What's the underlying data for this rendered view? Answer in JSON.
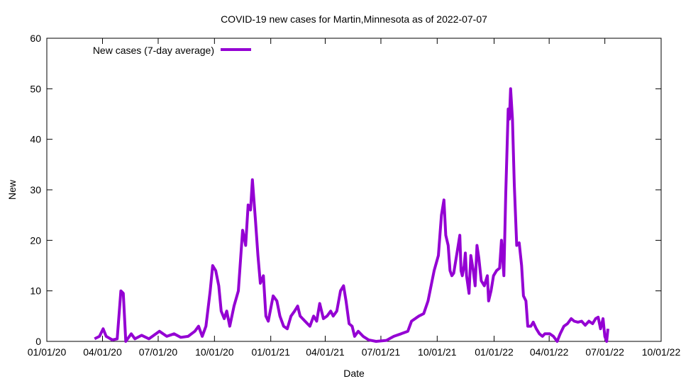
{
  "chart_data": {
    "type": "line",
    "title": "COVID-19 new cases for Martin,Minnesota as of 2022-07-07",
    "xlabel": "Date",
    "ylabel": "New",
    "x_unit": "days since 2020-01-01",
    "xlim": [
      0,
      1004
    ],
    "ylim": [
      0,
      60
    ],
    "yticks": [
      0,
      10,
      20,
      30,
      40,
      50,
      60
    ],
    "xticks": [
      {
        "day": 0,
        "label": "01/01/20"
      },
      {
        "day": 91,
        "label": "04/01/20"
      },
      {
        "day": 182,
        "label": "07/01/20"
      },
      {
        "day": 274,
        "label": "10/01/20"
      },
      {
        "day": 366,
        "label": "01/01/21"
      },
      {
        "day": 455,
        "label": "04/01/21"
      },
      {
        "day": 546,
        "label": "07/01/21"
      },
      {
        "day": 638,
        "label": "10/01/21"
      },
      {
        "day": 731,
        "label": "01/01/22"
      },
      {
        "day": 821,
        "label": "04/01/22"
      },
      {
        "day": 912,
        "label": "07/01/22"
      },
      {
        "day": 1004,
        "label": "10/01/22"
      }
    ],
    "grid": false,
    "legend_position": "top-left",
    "series": [
      {
        "name": "New cases (7-day average)",
        "color": "#9400d3",
        "x": [
          78,
          86,
          92,
          97,
          107,
          115,
          121,
          125,
          129,
          138,
          144,
          155,
          167,
          184,
          196,
          208,
          219,
          231,
          242,
          248,
          254,
          260,
          267,
          271,
          276,
          281,
          285,
          290,
          294,
          299,
          306,
          313,
          320,
          325,
          329,
          333,
          336,
          341,
          345,
          349,
          354,
          358,
          362,
          370,
          376,
          381,
          387,
          393,
          399,
          405,
          410,
          414,
          422,
          430,
          436,
          441,
          446,
          452,
          458,
          464,
          468,
          474,
          480,
          485,
          489,
          494,
          499,
          503,
          509,
          517,
          526,
          538,
          555,
          567,
          579,
          590,
          596,
          608,
          616,
          623,
          628,
          633,
          640,
          645,
          649,
          652,
          656,
          659,
          662,
          665,
          671,
          675,
          677,
          679,
          682,
          684,
          686,
          690,
          693,
          697,
          700,
          703,
          706,
          710,
          715,
          720,
          722,
          726,
          730,
          735,
          740,
          743,
          747,
          750,
          754,
          756,
          758,
          761,
          764,
          768,
          772,
          776,
          779,
          783,
          786,
          791,
          795,
          800,
          805,
          810,
          814,
          822,
          828,
          834,
          839,
          845,
          851,
          857,
          862,
          868,
          874,
          880,
          886,
          892,
          897,
          901,
          905,
          909,
          912,
          915,
          917
        ],
        "y": [
          0.5,
          1,
          2.5,
          1,
          0.3,
          0.5,
          10,
          9.5,
          0,
          1.5,
          0.5,
          1.2,
          0.5,
          2,
          1,
          1.5,
          0.8,
          1,
          2,
          3,
          1,
          3,
          10,
          15,
          14,
          11,
          6,
          4.5,
          6,
          3,
          7,
          10,
          22,
          19,
          27,
          26,
          32,
          24,
          17,
          11.5,
          13,
          5,
          4,
          9,
          8,
          5,
          3,
          2.5,
          5,
          6,
          7,
          5,
          4,
          3,
          5,
          4,
          7.5,
          4.5,
          5,
          6,
          5,
          6,
          10,
          11,
          8,
          3.5,
          3,
          1,
          2,
          1,
          0.3,
          0,
          0.2,
          1,
          1.5,
          2,
          4,
          5,
          5.5,
          8,
          11,
          14,
          17,
          25,
          28,
          21,
          19,
          14,
          13,
          13.5,
          18,
          21,
          14,
          13,
          15,
          17.5,
          13,
          9.5,
          17,
          14,
          11,
          19,
          16.5,
          12,
          11,
          13,
          8,
          10,
          13,
          14,
          14.5,
          20,
          13,
          29,
          46,
          44,
          50,
          44,
          31,
          19,
          19.5,
          15,
          9,
          8,
          3,
          3,
          3.8,
          2.5,
          1.5,
          1,
          1.5,
          1.5,
          1,
          0,
          1.5,
          3,
          3.5,
          4.5,
          4,
          3.8,
          4,
          3.2,
          4,
          3.5,
          4.5,
          4.8,
          2.5,
          4.5,
          1,
          0,
          2.5
        ]
      }
    ]
  }
}
